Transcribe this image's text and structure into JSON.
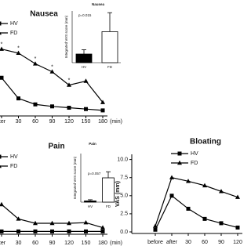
{
  "chart_data": [
    {
      "type": "line",
      "title": "Nausea",
      "x_unit": "(min)",
      "categories": [
        "fter",
        "30",
        "60",
        "90",
        "120",
        "150",
        "180"
      ],
      "annotations": [
        "*",
        "*",
        "*",
        "*",
        "*",
        null,
        null
      ],
      "ylim": [
        0,
        10
      ],
      "series": [
        {
          "name": "HV",
          "color": "#000000",
          "marker": "square",
          "values": [
            5.5,
            2.4,
            1.5,
            1.2,
            1.0,
            0.8,
            0.6
          ]
        },
        {
          "name": "FD",
          "color": "#000000",
          "marker": "triangle",
          "values": [
            9.8,
            9.2,
            7.6,
            6.4,
            4.4,
            5.0,
            1.8
          ]
        }
      ],
      "inset": {
        "type": "bar",
        "title": "Nausea",
        "ylabel": "Integrated VAS score (mm)",
        "p_label": "p=0.015",
        "categories": [
          "HV",
          "FD"
        ],
        "values": [
          10,
          36
        ],
        "errors": [
          5,
          22
        ],
        "colors": [
          "#000000",
          "#ffffff"
        ],
        "ylim": [
          0,
          60
        ]
      }
    },
    {
      "type": "line",
      "title": "Pain",
      "x_unit": "(min)",
      "categories": [
        "fter",
        "30",
        "60",
        "90",
        "120",
        "150",
        "180"
      ],
      "ylim": [
        0,
        10
      ],
      "series": [
        {
          "name": "HV",
          "color": "#000000",
          "marker": "square",
          "values": [
            0.2,
            0.2,
            0.2,
            0.2,
            0.2,
            0.2,
            0.2
          ]
        },
        {
          "name": "FD",
          "color": "#000000",
          "marker": "triangle",
          "values": [
            4.5,
            2.2,
            1.5,
            1.5,
            1.5,
            1.6,
            0.8
          ]
        }
      ],
      "inset": {
        "type": "bar",
        "title": "Pain",
        "ylabel": "Integrated VAS score (mm)",
        "p_label": "p=0.057",
        "categories": [
          "HV",
          "FD"
        ],
        "values": [
          1,
          20
        ],
        "errors": [
          1,
          5
        ],
        "colors": [
          "#000000",
          "#ffffff"
        ],
        "ylim": [
          0,
          40
        ]
      }
    },
    {
      "type": "line",
      "title": "Bloating",
      "ylabel": "VAS (mm)",
      "categories": [
        "before",
        "after",
        "30",
        "60",
        "90",
        "120"
      ],
      "ylim": [
        0,
        10.5
      ],
      "yticks": [
        {
          "value": 0,
          "label": "0.0"
        },
        {
          "value": 2.5,
          "label": "2.5"
        },
        {
          "value": 5,
          "label": "5.0"
        },
        {
          "value": 7.5,
          "label": "7.5"
        },
        {
          "value": 10,
          "label": "10.0"
        }
      ],
      "series": [
        {
          "name": "HV",
          "color": "#000000",
          "marker": "square",
          "values": [
            0.3,
            5.0,
            3.2,
            1.8,
            1.2,
            0.6
          ]
        },
        {
          "name": "FD",
          "color": "#000000",
          "marker": "triangle",
          "values": [
            0.8,
            7.5,
            7.0,
            6.4,
            5.6,
            4.8
          ]
        }
      ]
    }
  ]
}
